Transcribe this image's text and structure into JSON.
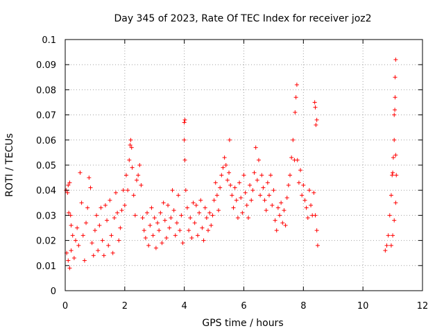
{
  "chart_data": {
    "type": "scatter",
    "title": "Day 345 of 2023, Rate Of TEC Index for receiver joz2",
    "xlabel": "GPS time / hours",
    "ylabel": "ROTI / TECUs",
    "xlim": [
      0,
      12
    ],
    "ylim": [
      0,
      0.1
    ],
    "x_ticks": [
      0,
      2,
      4,
      6,
      8,
      10,
      12
    ],
    "x_tick_labels": [
      "0",
      "2",
      "4",
      "6",
      "8",
      "10",
      "12"
    ],
    "y_ticks": [
      0,
      0.01,
      0.02,
      0.03,
      0.04,
      0.05,
      0.06,
      0.07,
      0.08,
      0.09,
      0.1
    ],
    "y_tick_labels": [
      "0",
      "0.01",
      "0.02",
      "0.03",
      "0.04",
      "0.05",
      "0.06",
      "0.07",
      "0.08",
      "0.09",
      "0.1"
    ],
    "grid": true,
    "marker": "+",
    "color": "#ff0000",
    "series": [
      {
        "name": "ROTI",
        "points": [
          [
            0.03,
            0.04
          ],
          [
            0.08,
            0.039
          ],
          [
            0.1,
            0.042
          ],
          [
            0.15,
            0.043
          ],
          [
            0.12,
            0.031
          ],
          [
            0.18,
            0.03
          ],
          [
            0.2,
            0.026
          ],
          [
            0.25,
            0.022
          ],
          [
            0.05,
            0.015
          ],
          [
            0.1,
            0.012
          ],
          [
            0.15,
            0.009
          ],
          [
            0.2,
            0.016
          ],
          [
            0.3,
            0.013
          ],
          [
            0.35,
            0.02
          ],
          [
            0.4,
            0.025
          ],
          [
            0.45,
            0.018
          ],
          [
            0.5,
            0.047
          ],
          [
            0.55,
            0.035
          ],
          [
            0.6,
            0.022
          ],
          [
            0.65,
            0.012
          ],
          [
            0.7,
            0.027
          ],
          [
            0.75,
            0.033
          ],
          [
            0.8,
            0.045
          ],
          [
            0.85,
            0.041
          ],
          [
            0.9,
            0.019
          ],
          [
            0.95,
            0.014
          ],
          [
            1.0,
            0.024
          ],
          [
            1.05,
            0.03
          ],
          [
            1.1,
            0.016
          ],
          [
            1.15,
            0.026
          ],
          [
            1.2,
            0.033
          ],
          [
            1.25,
            0.02
          ],
          [
            1.3,
            0.014
          ],
          [
            1.35,
            0.034
          ],
          [
            1.4,
            0.028
          ],
          [
            1.45,
            0.018
          ],
          [
            1.5,
            0.036
          ],
          [
            1.55,
            0.022
          ],
          [
            1.6,
            0.015
          ],
          [
            1.65,
            0.029
          ],
          [
            1.7,
            0.039
          ],
          [
            1.75,
            0.031
          ],
          [
            1.8,
            0.02
          ],
          [
            1.85,
            0.025
          ],
          [
            1.9,
            0.032
          ],
          [
            1.95,
            0.04
          ],
          [
            2.0,
            0.034
          ],
          [
            2.05,
            0.046
          ],
          [
            2.1,
            0.04
          ],
          [
            2.15,
            0.052
          ],
          [
            2.18,
            0.058
          ],
          [
            2.2,
            0.06
          ],
          [
            2.23,
            0.057
          ],
          [
            2.25,
            0.049
          ],
          [
            2.3,
            0.038
          ],
          [
            2.35,
            0.03
          ],
          [
            2.4,
            0.044
          ],
          [
            2.45,
            0.046
          ],
          [
            2.5,
            0.05
          ],
          [
            2.55,
            0.042
          ],
          [
            2.6,
            0.029
          ],
          [
            2.65,
            0.024
          ],
          [
            2.7,
            0.021
          ],
          [
            2.75,
            0.031
          ],
          [
            2.8,
            0.018
          ],
          [
            2.85,
            0.026
          ],
          [
            2.9,
            0.033
          ],
          [
            2.95,
            0.022
          ],
          [
            3.0,
            0.029
          ],
          [
            3.05,
            0.017
          ],
          [
            3.1,
            0.027
          ],
          [
            3.15,
            0.024
          ],
          [
            3.2,
            0.031
          ],
          [
            3.25,
            0.019
          ],
          [
            3.3,
            0.035
          ],
          [
            3.35,
            0.028
          ],
          [
            3.4,
            0.021
          ],
          [
            3.45,
            0.034
          ],
          [
            3.5,
            0.025
          ],
          [
            3.55,
            0.029
          ],
          [
            3.6,
            0.04
          ],
          [
            3.65,
            0.032
          ],
          [
            3.7,
            0.022
          ],
          [
            3.75,
            0.027
          ],
          [
            3.8,
            0.038
          ],
          [
            3.85,
            0.024
          ],
          [
            3.9,
            0.03
          ],
          [
            3.95,
            0.019
          ],
          [
            4.0,
            0.067
          ],
          [
            4.02,
            0.068
          ],
          [
            4.0,
            0.06
          ],
          [
            4.02,
            0.052
          ],
          [
            4.05,
            0.04
          ],
          [
            4.1,
            0.033
          ],
          [
            4.15,
            0.024
          ],
          [
            4.2,
            0.029
          ],
          [
            4.25,
            0.021
          ],
          [
            4.3,
            0.035
          ],
          [
            4.35,
            0.027
          ],
          [
            4.4,
            0.034
          ],
          [
            4.45,
            0.022
          ],
          [
            4.5,
            0.031
          ],
          [
            4.55,
            0.036
          ],
          [
            4.6,
            0.025
          ],
          [
            4.65,
            0.02
          ],
          [
            4.7,
            0.033
          ],
          [
            4.75,
            0.029
          ],
          [
            4.8,
            0.024
          ],
          [
            4.85,
            0.031
          ],
          [
            4.9,
            0.026
          ],
          [
            4.95,
            0.03
          ],
          [
            5.0,
            0.036
          ],
          [
            5.05,
            0.043
          ],
          [
            5.1,
            0.038
          ],
          [
            5.15,
            0.032
          ],
          [
            5.2,
            0.041
          ],
          [
            5.25,
            0.046
          ],
          [
            5.3,
            0.049
          ],
          [
            5.35,
            0.053
          ],
          [
            5.4,
            0.05
          ],
          [
            5.45,
            0.044
          ],
          [
            5.5,
            0.047
          ],
          [
            5.52,
            0.06
          ],
          [
            5.55,
            0.042
          ],
          [
            5.6,
            0.038
          ],
          [
            5.65,
            0.033
          ],
          [
            5.7,
            0.041
          ],
          [
            5.75,
            0.036
          ],
          [
            5.8,
            0.029
          ],
          [
            5.85,
            0.043
          ],
          [
            5.9,
            0.037
          ],
          [
            5.95,
            0.031
          ],
          [
            6.0,
            0.046
          ],
          [
            6.05,
            0.039
          ],
          [
            6.1,
            0.034
          ],
          [
            6.15,
            0.029
          ],
          [
            6.2,
            0.042
          ],
          [
            6.25,
            0.036
          ],
          [
            6.3,
            0.04
          ],
          [
            6.35,
            0.047
          ],
          [
            6.4,
            0.057
          ],
          [
            6.45,
            0.044
          ],
          [
            6.5,
            0.052
          ],
          [
            6.55,
            0.038
          ],
          [
            6.6,
            0.046
          ],
          [
            6.65,
            0.041
          ],
          [
            6.7,
            0.036
          ],
          [
            6.75,
            0.032
          ],
          [
            6.8,
            0.043
          ],
          [
            6.85,
            0.038
          ],
          [
            6.9,
            0.046
          ],
          [
            6.95,
            0.034
          ],
          [
            7.0,
            0.04
          ],
          [
            7.05,
            0.028
          ],
          [
            7.1,
            0.024
          ],
          [
            7.15,
            0.033
          ],
          [
            7.2,
            0.03
          ],
          [
            7.25,
            0.035
          ],
          [
            7.3,
            0.027
          ],
          [
            7.35,
            0.032
          ],
          [
            7.4,
            0.026
          ],
          [
            7.45,
            0.037
          ],
          [
            7.5,
            0.042
          ],
          [
            7.55,
            0.046
          ],
          [
            7.6,
            0.053
          ],
          [
            7.65,
            0.06
          ],
          [
            7.7,
            0.052
          ],
          [
            7.72,
            0.071
          ],
          [
            7.75,
            0.077
          ],
          [
            7.78,
            0.082
          ],
          [
            7.8,
            0.052
          ],
          [
            7.85,
            0.043
          ],
          [
            7.9,
            0.048
          ],
          [
            7.95,
            0.038
          ],
          [
            8.0,
            0.042
          ],
          [
            8.05,
            0.036
          ],
          [
            8.1,
            0.033
          ],
          [
            8.15,
            0.029
          ],
          [
            8.2,
            0.04
          ],
          [
            8.25,
            0.034
          ],
          [
            8.3,
            0.03
          ],
          [
            8.35,
            0.039
          ],
          [
            8.38,
            0.075
          ],
          [
            8.4,
            0.073
          ],
          [
            8.42,
            0.066
          ],
          [
            8.45,
            0.068
          ],
          [
            8.4,
            0.03
          ],
          [
            8.45,
            0.024
          ],
          [
            8.48,
            0.018
          ],
          [
            10.75,
            0.016
          ],
          [
            10.8,
            0.018
          ],
          [
            10.85,
            0.022
          ],
          [
            10.9,
            0.03
          ],
          [
            10.95,
            0.038
          ],
          [
            10.98,
            0.046
          ],
          [
            11.0,
            0.047
          ],
          [
            11.02,
            0.053
          ],
          [
            11.05,
            0.06
          ],
          [
            11.05,
            0.07
          ],
          [
            11.07,
            0.072
          ],
          [
            11.08,
            0.077
          ],
          [
            11.08,
            0.085
          ],
          [
            11.1,
            0.092
          ],
          [
            11.1,
            0.054
          ],
          [
            11.12,
            0.046
          ],
          [
            11.1,
            0.035
          ],
          [
            11.05,
            0.028
          ],
          [
            11.0,
            0.022
          ],
          [
            10.95,
            0.018
          ]
        ]
      }
    ]
  }
}
